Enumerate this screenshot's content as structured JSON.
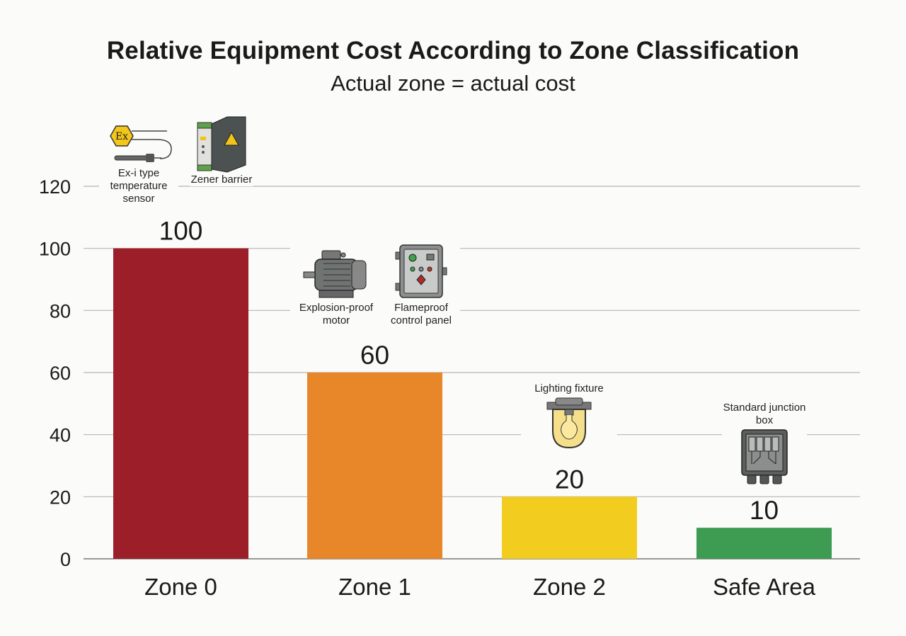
{
  "chart_data": {
    "type": "bar",
    "title": "Relative Equipment Cost According to Zone Classification",
    "subtitle": "Actual zone = actual cost",
    "xlabel": "",
    "ylabel": "",
    "categories": [
      "Zone 0",
      "Zone 1",
      "Zone 2",
      "Safe Area"
    ],
    "values": [
      100,
      60,
      20,
      10
    ],
    "data_labels": [
      "100",
      "60",
      "20",
      "10"
    ],
    "colors": [
      "#9b1e29",
      "#e8862a",
      "#f2cd1f",
      "#3d9b52"
    ],
    "ylim": [
      0,
      120
    ],
    "yticks": [
      0,
      20,
      40,
      60,
      80,
      100,
      120
    ],
    "grid": true,
    "legend": "none",
    "annotations": [
      {
        "category": "Zone 0",
        "items": [
          "Ex-i type temperature sensor",
          "Zener barrier"
        ]
      },
      {
        "category": "Zone 1",
        "items": [
          "Explosion-proof motor",
          "Flameproof control panel"
        ]
      },
      {
        "category": "Zone 2",
        "items": [
          "Lighting fixture"
        ]
      },
      {
        "category": "Safe Area",
        "items": [
          "Standard junction box"
        ]
      }
    ]
  },
  "icons": {
    "ex_sensor_badge": "Ex"
  }
}
